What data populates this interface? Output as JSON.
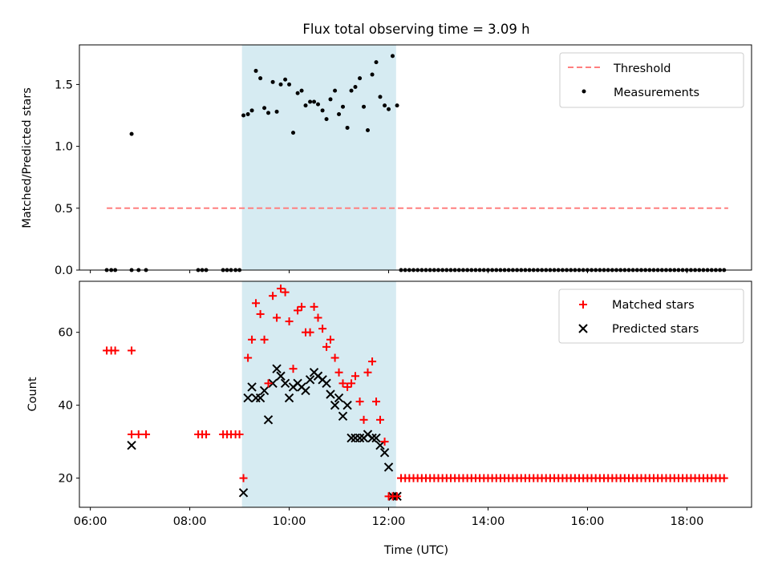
{
  "figure": {
    "title": "Flux total observing time = 3.09 h"
  },
  "colors": {
    "threshold": "#ff7f7f",
    "measurements": "#000000",
    "matched": "#ff0000",
    "predicted": "#000000",
    "observing_window": "#add8e6"
  },
  "chart_data": [
    {
      "type": "scatter",
      "panel": "top",
      "title": "Flux total observing time = 3.09 h",
      "xlabel": "",
      "ylabel": "Matched/Predicted stars",
      "xlim": [
        5.78,
        19.3
      ],
      "ylim": [
        0.0,
        1.82
      ],
      "yticks": [
        0.0,
        0.5,
        1.0,
        1.5
      ],
      "ytick_labels": [
        "0.0",
        "0.5",
        "1.0",
        "1.5"
      ],
      "legend_position": "top-right",
      "legend": [
        "Threshold",
        "Measurements"
      ],
      "observing_window": [
        9.05,
        12.15
      ],
      "threshold": {
        "name": "Threshold",
        "value": 0.5,
        "x_range": [
          6.33,
          18.83
        ]
      },
      "series": [
        {
          "name": "Measurements",
          "x": [
            6.33,
            6.42,
            6.5,
            6.83,
            6.97,
            7.12,
            8.17,
            8.25,
            8.33,
            8.67,
            8.75,
            8.83,
            8.92,
            9.0,
            9.08,
            9.17,
            9.25,
            9.33,
            9.42,
            9.5,
            9.58,
            9.67,
            9.75,
            9.83,
            9.92,
            10.0,
            10.08,
            10.17,
            10.25,
            10.33,
            10.42,
            10.5,
            10.58,
            10.67,
            10.75,
            10.83,
            10.92,
            11.0,
            11.08,
            11.17,
            11.25,
            11.33,
            11.42,
            11.5,
            11.58,
            11.67,
            11.75,
            11.83,
            11.92,
            12.0,
            12.08,
            12.17,
            6.83
          ],
          "y": [
            0,
            0,
            0,
            0,
            0,
            0,
            0,
            0,
            0,
            0,
            0,
            0,
            0,
            0,
            1.25,
            1.26,
            1.29,
            1.61,
            1.55,
            1.31,
            1.27,
            1.52,
            1.28,
            1.5,
            1.54,
            1.5,
            1.11,
            1.43,
            1.45,
            1.33,
            1.36,
            1.36,
            1.34,
            1.29,
            1.22,
            1.38,
            1.45,
            1.26,
            1.32,
            1.15,
            1.45,
            1.48,
            1.55,
            1.32,
            1.13,
            1.58,
            1.68,
            1.4,
            1.33,
            1.3,
            1.73,
            1.33,
            1.1
          ]
        }
      ],
      "post_window_zeros": {
        "x_start": 12.25,
        "x_end": 18.83,
        "step": 0.0833,
        "y": 0
      }
    },
    {
      "type": "scatter",
      "panel": "bottom",
      "xlabel": "Time (UTC)",
      "ylabel": "Count",
      "xlim": [
        5.78,
        19.3
      ],
      "ylim": [
        12.0,
        74.0
      ],
      "xticks": [
        6,
        8,
        10,
        12,
        14,
        16,
        18
      ],
      "xtick_labels": [
        "06:00",
        "08:00",
        "10:00",
        "12:00",
        "14:00",
        "16:00",
        "18:00"
      ],
      "yticks": [
        20,
        40,
        60
      ],
      "ytick_labels": [
        "20",
        "40",
        "60"
      ],
      "legend_position": "top-right",
      "legend": [
        "Matched stars",
        "Predicted stars"
      ],
      "observing_window": [
        9.05,
        12.15
      ],
      "series": [
        {
          "name": "Matched stars",
          "x": [
            6.33,
            6.42,
            6.5,
            6.83,
            6.83,
            6.97,
            7.12,
            8.17,
            8.25,
            8.33,
            8.67,
            8.75,
            8.83,
            8.92,
            9.0,
            9.08,
            9.17,
            9.25,
            9.33,
            9.42,
            9.5,
            9.58,
            9.67,
            9.75,
            9.83,
            9.92,
            10.0,
            10.08,
            10.17,
            10.25,
            10.33,
            10.42,
            10.5,
            10.58,
            10.67,
            10.75,
            10.83,
            10.92,
            11.0,
            11.08,
            11.17,
            11.25,
            11.33,
            11.42,
            11.5,
            11.58,
            11.67,
            11.75,
            11.83,
            11.92,
            12.0,
            12.08,
            12.17
          ],
          "y": [
            55,
            55,
            55,
            55,
            32,
            32,
            32,
            32,
            32,
            32,
            32,
            32,
            32,
            32,
            32,
            20,
            53,
            58,
            68,
            65,
            58,
            46,
            70,
            64,
            72,
            71,
            63,
            50,
            66,
            67,
            60,
            60,
            67,
            64,
            61,
            56,
            58,
            53,
            49,
            46,
            45,
            46,
            48,
            41,
            36,
            49,
            52,
            41,
            36,
            30,
            15,
            15,
            15
          ]
        },
        {
          "name": "Predicted stars",
          "x": [
            6.83,
            9.08,
            9.17,
            9.25,
            9.33,
            9.42,
            9.5,
            9.58,
            9.67,
            9.75,
            9.83,
            9.92,
            10.0,
            10.08,
            10.17,
            10.25,
            10.33,
            10.42,
            10.5,
            10.58,
            10.67,
            10.75,
            10.83,
            10.92,
            11.0,
            11.08,
            11.17,
            11.25,
            11.33,
            11.42,
            11.5,
            11.58,
            11.67,
            11.75,
            11.83,
            11.92,
            12.0,
            12.08,
            12.17
          ],
          "y": [
            29,
            16,
            42,
            45,
            42,
            42,
            44,
            36,
            46,
            50,
            48,
            46,
            42,
            45,
            46,
            45,
            44,
            47,
            49,
            48,
            47,
            46,
            43,
            40,
            42,
            37,
            40,
            31,
            31,
            31,
            31,
            32,
            31,
            31,
            29,
            27,
            23,
            15,
            15
          ]
        }
      ],
      "post_window_matched": {
        "x_start": 12.25,
        "x_end": 18.83,
        "step": 0.0833,
        "y": 20
      }
    }
  ]
}
